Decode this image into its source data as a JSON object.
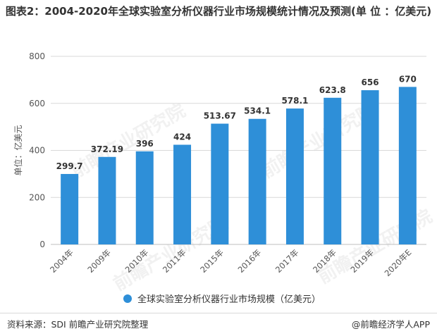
{
  "title": "图表2：2004-2020年全球实验室分析仪器行业市场规模统计情况及预测(单 位 ：亿美元)",
  "watermark": "前瞻产业研究院",
  "footer": {
    "source": "资料来源：SDI 前瞻产业研究院整理",
    "brand": "@前瞻经济学人APP"
  },
  "colors": {
    "bar": "#2e8fd8",
    "grid": "#d9d9d9",
    "axis_text": "#555555"
  },
  "chart_data": {
    "type": "bar",
    "categories": [
      "2004年",
      "2009年",
      "2010年",
      "2011年",
      "2015年",
      "2016年",
      "2017年",
      "2018年",
      "2019年",
      "2020年E"
    ],
    "series": [
      {
        "name": "全球实验室分析仪器行业市场规模（亿美元）",
        "values": [
          299.7,
          372.19,
          396,
          424,
          513.67,
          534.1,
          578.1,
          623.8,
          656,
          670
        ],
        "labels": [
          "299.7",
          "372.19",
          "396",
          "424",
          "513.67",
          "534.1",
          "578.1",
          "623.8",
          "656",
          "670"
        ]
      }
    ],
    "ylabel": "单位：亿美元",
    "ylim": [
      0,
      800
    ],
    "yticks": [
      0,
      200,
      400,
      600,
      800
    ],
    "grid": true,
    "legend_position": "bottom"
  }
}
